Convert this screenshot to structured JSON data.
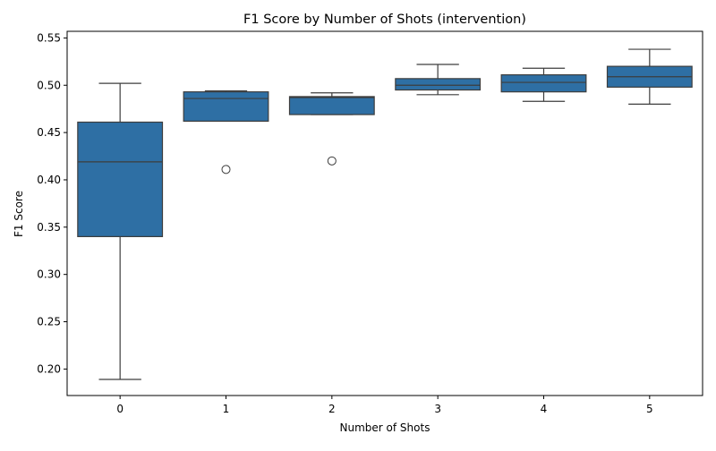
{
  "chart_data": {
    "type": "box",
    "title": "F1 Score by Number of Shots (intervention)",
    "xlabel": "Number of Shots",
    "ylabel": "F1 Score",
    "categories": [
      "0",
      "1",
      "2",
      "3",
      "4",
      "5"
    ],
    "ylim": [
      0.172,
      0.557
    ],
    "yticks": [
      0.2,
      0.25,
      0.3,
      0.35,
      0.4,
      0.45,
      0.5,
      0.55
    ],
    "ytick_labels": [
      "0.20",
      "0.25",
      "0.30",
      "0.35",
      "0.40",
      "0.45",
      "0.50",
      "0.55"
    ],
    "grid": false,
    "box_color": "#2e6fa4",
    "line_color": "#3d3d3d",
    "boxes": [
      {
        "category": "0",
        "whisker_low": 0.189,
        "q1": 0.34,
        "median": 0.419,
        "q3": 0.461,
        "whisker_high": 0.502,
        "outliers": []
      },
      {
        "category": "1",
        "whisker_low": 0.462,
        "q1": 0.462,
        "median": 0.486,
        "q3": 0.493,
        "whisker_high": 0.494,
        "outliers": [
          0.411
        ]
      },
      {
        "category": "2",
        "whisker_low": 0.469,
        "q1": 0.469,
        "median": 0.487,
        "q3": 0.488,
        "whisker_high": 0.492,
        "outliers": [
          0.42
        ]
      },
      {
        "category": "3",
        "whisker_low": 0.49,
        "q1": 0.495,
        "median": 0.5,
        "q3": 0.507,
        "whisker_high": 0.522,
        "outliers": []
      },
      {
        "category": "4",
        "whisker_low": 0.483,
        "q1": 0.493,
        "median": 0.503,
        "q3": 0.511,
        "whisker_high": 0.518,
        "outliers": []
      },
      {
        "category": "5",
        "whisker_low": 0.48,
        "q1": 0.498,
        "median": 0.509,
        "q3": 0.52,
        "whisker_high": 0.538,
        "outliers": []
      }
    ]
  }
}
